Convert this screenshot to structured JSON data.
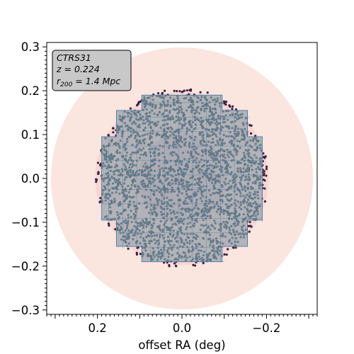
{
  "chart_data": {
    "type": "scatter",
    "title": "",
    "xlabel": "offset RA (deg)",
    "ylabel": "",
    "xlim": [
      0.32,
      -0.32
    ],
    "ylim": [
      -0.31,
      0.31
    ],
    "x_inverted": true,
    "xticks": [
      {
        "value": 0.2,
        "label": "0.2"
      },
      {
        "value": 0.0,
        "label": "0.0"
      },
      {
        "value": -0.2,
        "label": "−0.2"
      }
    ],
    "yticks": [
      {
        "value": 0.3,
        "label": "0.3"
      },
      {
        "value": 0.2,
        "label": "0.2"
      },
      {
        "value": 0.1,
        "label": "0.1"
      },
      {
        "value": 0.0,
        "label": "0.0"
      },
      {
        "value": -0.1,
        "label": "−0.1"
      },
      {
        "value": -0.2,
        "label": "−0.2"
      },
      {
        "value": -0.3,
        "label": "−0.3"
      }
    ],
    "info_box": {
      "name": "CTRS31",
      "z_label": "z = 0.224",
      "r_prefix": "r",
      "r_sub": "200",
      "r_suffix": " = 1.4 Mpc"
    },
    "regions": {
      "outer_circle_radius": 0.31,
      "mid_circle_radius": 0.205,
      "inner_circle_radius": 0.105,
      "footprint_tile_size": 0.033,
      "footprint_polygon": [
        [
          0.095,
          0.19
        ],
        [
          -0.095,
          0.19
        ],
        [
          -0.095,
          0.155
        ],
        [
          -0.155,
          0.155
        ],
        [
          -0.155,
          0.095
        ],
        [
          -0.19,
          0.095
        ],
        [
          -0.19,
          -0.095
        ],
        [
          -0.155,
          -0.095
        ],
        [
          -0.155,
          -0.155
        ],
        [
          -0.095,
          -0.155
        ],
        [
          -0.095,
          -0.19
        ],
        [
          0.095,
          -0.19
        ],
        [
          0.095,
          -0.155
        ],
        [
          0.155,
          -0.155
        ],
        [
          0.155,
          -0.095
        ],
        [
          0.19,
          -0.095
        ],
        [
          0.19,
          0.095
        ],
        [
          0.155,
          0.095
        ],
        [
          0.155,
          0.155
        ],
        [
          0.095,
          0.155
        ]
      ]
    },
    "series": [
      {
        "kind": "targets_outside_footprint",
        "color": "#3b1f3f",
        "region_radius": 0.205
      },
      {
        "kind": "targets_inside_footprint",
        "color": "#5f7787",
        "region_radius": 0.205
      }
    ],
    "colors": {
      "outer_circle": "#fbe5df",
      "mid_circle": "#f6c8c8",
      "inner_circle": "#c8a3bf",
      "footprint_fill": "#a9adb3",
      "footprint_grid": "#4f82ab",
      "box_fill": "#c8c8c8"
    },
    "grid": false,
    "legend": "none"
  }
}
